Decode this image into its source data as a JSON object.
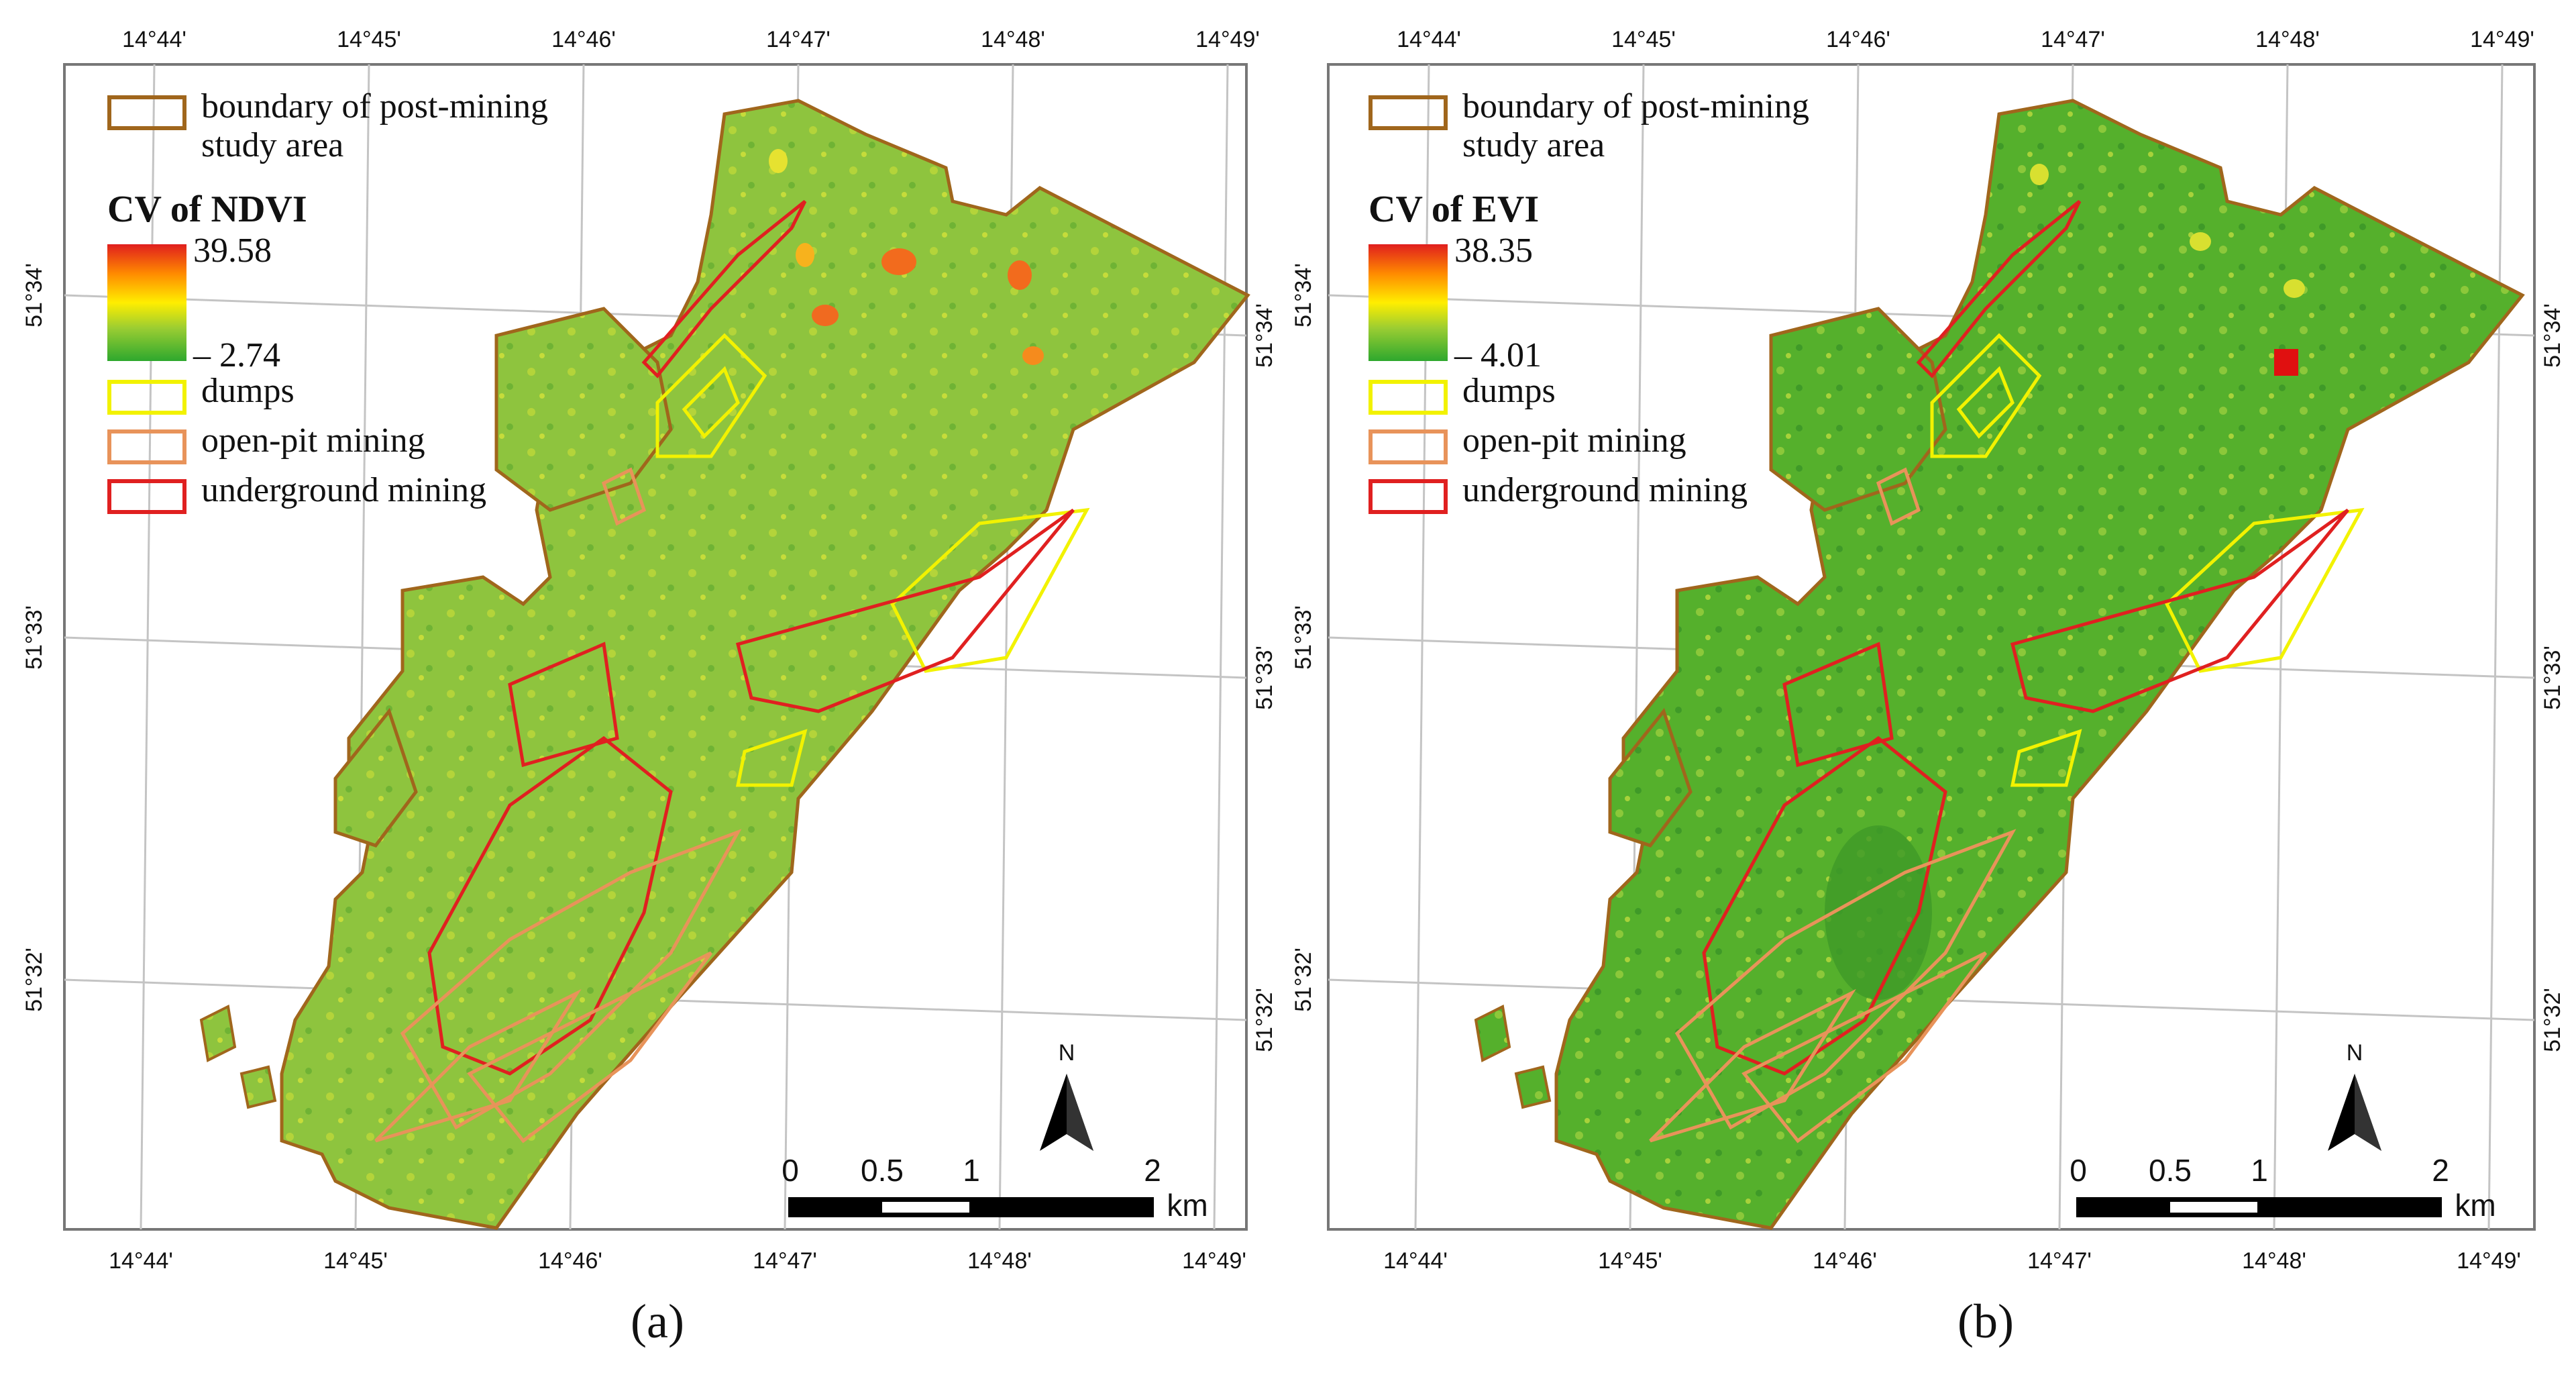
{
  "panels": [
    {
      "id": "a",
      "label": "(a)",
      "legend": {
        "boundary_label": "boundary of post-mining study area",
        "boundary_line1": "boundary of post-mining",
        "boundary_line2": "study area",
        "index_title": "CV of NDVI",
        "ramp_max": "39.58",
        "ramp_min": "– 2.74",
        "dumps": "dumps",
        "open_pit": "open-pit mining",
        "underground": "underground mining"
      }
    },
    {
      "id": "b",
      "label": "(b)",
      "legend": {
        "boundary_label": "boundary of post-mining study area",
        "boundary_line1": "boundary of post-mining",
        "boundary_line2": "study area",
        "index_title": "CV of EVI",
        "ramp_max": "38.35",
        "ramp_min": "– 4.01",
        "dumps": "dumps",
        "open_pit": "open-pit mining",
        "underground": "underground mining"
      }
    }
  ],
  "longitude_ticks": [
    "14°44'",
    "14°45'",
    "14°46'",
    "14°47'",
    "14°48'",
    "14°49'"
  ],
  "latitude_ticks": [
    "51°34'",
    "51°33'",
    "51°32'"
  ],
  "scale_bar": {
    "labels": [
      "0",
      "0.5",
      "1",
      "2"
    ],
    "unit": "km"
  },
  "north_arrow_label": "N",
  "colors": {
    "boundary": "#a0661c",
    "dumps": "#f2f200",
    "open_pit": "#e8935a",
    "underground": "#e02020",
    "vegetation_ndvi": "#8cc63f",
    "vegetation_evi": "#4cae2a",
    "grid": "#c0c0c0"
  },
  "icons": [
    "north-arrow-icon"
  ]
}
